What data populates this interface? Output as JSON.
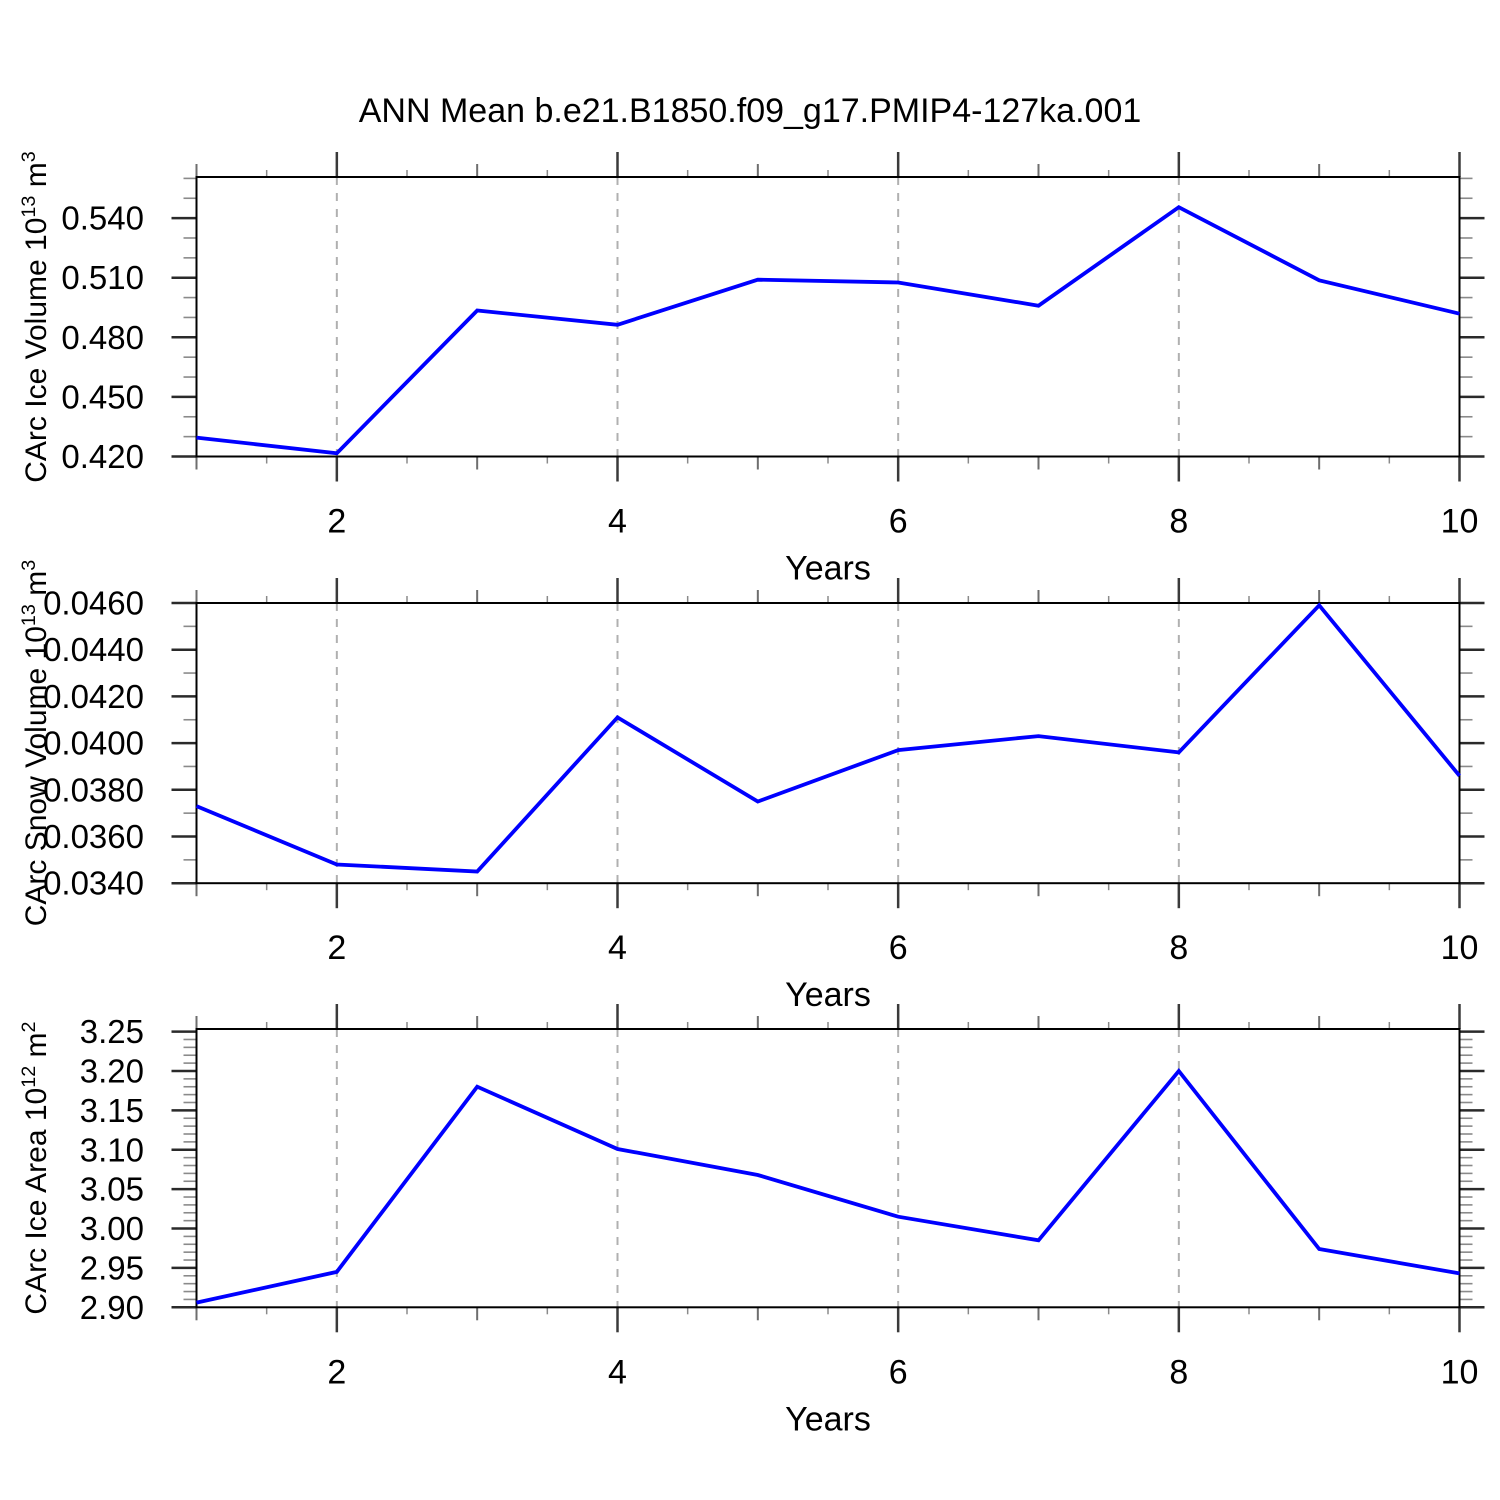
{
  "title": "ANN Mean b.e21.B1850.f09_g17.PMIP4-127ka.001",
  "line_color": "#0000ff",
  "grid_color": "#b0b0b0",
  "axis_color": "#000000",
  "chart_data": [
    {
      "type": "line",
      "name": "carc-ice-volume",
      "ylabel": "CArc Ice Volume 10^13 m^3",
      "ylabel_parts": {
        "name": "CArc Ice Volume 10",
        "exp": "13",
        "unit": " m",
        "unit_exp": "3"
      },
      "xlabel": "Years",
      "x": [
        1,
        2,
        3,
        4,
        5,
        6,
        7,
        8,
        9,
        10
      ],
      "values": [
        0.4295,
        0.4216,
        0.4935,
        0.4863,
        0.509,
        0.5076,
        0.4959,
        0.5455,
        0.5087,
        0.4919
      ],
      "xlim": [
        1,
        10
      ],
      "ylim": [
        0.42,
        0.5607
      ],
      "xtick_values": [
        2,
        4,
        6,
        8,
        10
      ],
      "xtick_labels": [
        "2",
        "4",
        "6",
        "8",
        "10"
      ],
      "x_minor_step": 0.5,
      "ytick_values": [
        0.42,
        0.45,
        0.48,
        0.51,
        0.54
      ],
      "ytick_labels": [
        "0.420",
        "0.450",
        "0.480",
        "0.510",
        "0.540"
      ],
      "y_minor_step": 0.01,
      "gridline_x_values": [
        2,
        4,
        6,
        8
      ],
      "grid": "vertical-dashed"
    },
    {
      "type": "line",
      "name": "carc-snow-volume",
      "ylabel": "CArc Snow Volume 10^13 m^3",
      "ylabel_parts": {
        "name": "CArc Snow Volume 10",
        "exp": "13",
        "unit": " m",
        "unit_exp": "3"
      },
      "xlabel": "Years",
      "x": [
        1,
        2,
        3,
        4,
        5,
        6,
        7,
        8,
        9,
        10
      ],
      "values": [
        0.0373,
        0.0348,
        0.0345,
        0.0411,
        0.0375,
        0.0397,
        0.0403,
        0.0396,
        0.0459,
        0.0386
      ],
      "xlim": [
        1,
        10
      ],
      "ylim": [
        0.034,
        0.046
      ],
      "xtick_values": [
        2,
        4,
        6,
        8,
        10
      ],
      "xtick_labels": [
        "2",
        "4",
        "6",
        "8",
        "10"
      ],
      "x_minor_step": 0.5,
      "ytick_values": [
        0.034,
        0.036,
        0.038,
        0.04,
        0.042,
        0.044,
        0.046
      ],
      "ytick_labels": [
        "0.0340",
        "0.0360",
        "0.0380",
        "0.0400",
        "0.0420",
        "0.0440",
        "0.0460"
      ],
      "y_minor_step": 0.001,
      "gridline_x_values": [
        2,
        4,
        6,
        8
      ],
      "grid": "vertical-dashed"
    },
    {
      "type": "line",
      "name": "carc-ice-area",
      "ylabel": "CArc Ice Area 10^12 m^2",
      "ylabel_parts": {
        "name": "CArc Ice Area 10",
        "exp": "12",
        "unit": " m",
        "unit_exp": "2"
      },
      "xlabel": "Years",
      "x": [
        1,
        2,
        3,
        4,
        5,
        6,
        7,
        8,
        9,
        10
      ],
      "values": [
        2.906,
        2.945,
        3.18,
        3.101,
        3.068,
        3.015,
        2.985,
        3.2,
        2.974,
        2.943
      ],
      "xlim": [
        1,
        10
      ],
      "ylim": [
        2.9,
        3.2533
      ],
      "xtick_values": [
        2,
        4,
        6,
        8,
        10
      ],
      "xtick_labels": [
        "2",
        "4",
        "6",
        "8",
        "10"
      ],
      "x_minor_step": 0.5,
      "ytick_values": [
        2.9,
        2.95,
        3.0,
        3.05,
        3.1,
        3.15,
        3.2,
        3.25
      ],
      "ytick_labels": [
        "2.90",
        "2.95",
        "3.00",
        "3.05",
        "3.10",
        "3.15",
        "3.20",
        "3.25"
      ],
      "y_minor_step": 0.01,
      "gridline_x_values": [
        2,
        4,
        6,
        8
      ],
      "grid": "vertical-dashed"
    }
  ]
}
